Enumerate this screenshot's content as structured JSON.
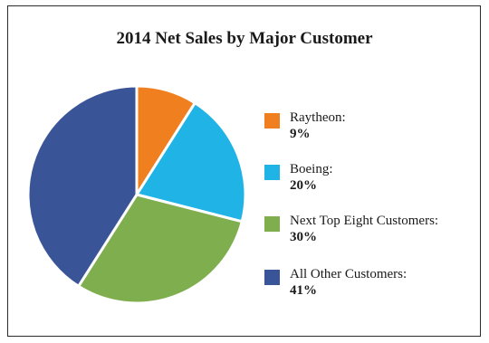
{
  "chart_data": {
    "type": "pie",
    "title": "2014 Net Sales by Major Customer",
    "categories": [
      "Raytheon:",
      "Boeing:",
      "Next Top Eight Customers:",
      "All Other Customers:"
    ],
    "values": [
      9,
      20,
      30,
      41
    ],
    "value_labels": [
      "9%",
      "20%",
      "30%",
      "41%"
    ],
    "unit": "%",
    "colors": [
      "#f07f1f",
      "#1fb3e6",
      "#7fae4e",
      "#3a5597"
    ],
    "legend_position": "right",
    "start_angle": "top, clockwise"
  }
}
